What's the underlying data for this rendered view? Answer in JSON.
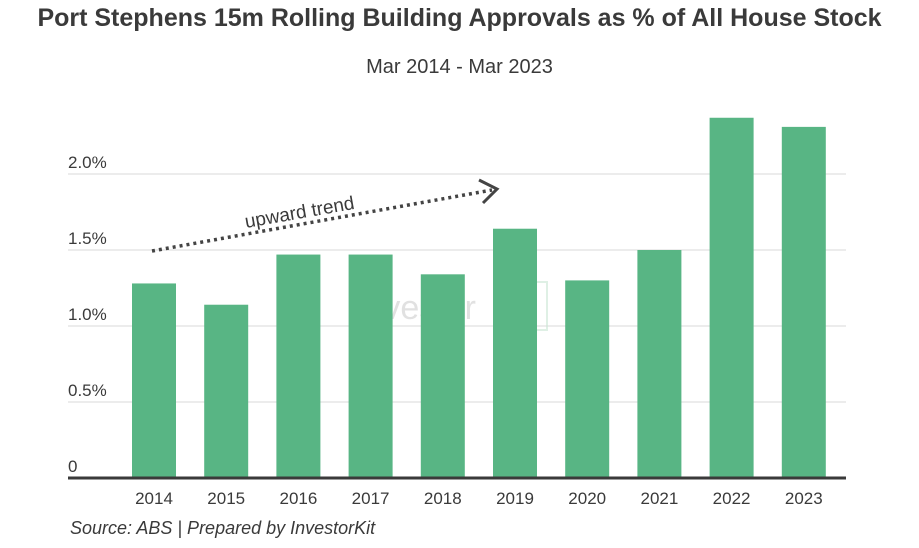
{
  "chart_data": {
    "type": "bar",
    "title": "Port Stephens 15m Rolling Building Approvals as % of All House Stock",
    "subtitle": "Mar 2014 - Mar 2023",
    "categories": [
      "2014",
      "2015",
      "2016",
      "2017",
      "2018",
      "2019",
      "2020",
      "2021",
      "2022",
      "2023"
    ],
    "values": [
      1.28,
      1.14,
      1.47,
      1.47,
      1.34,
      1.64,
      1.3,
      1.5,
      2.37,
      2.31
    ],
    "y_ticks": [
      {
        "value": 0,
        "label": "0"
      },
      {
        "value": 0.5,
        "label": "0.5%"
      },
      {
        "value": 1.0,
        "label": "1.0%"
      },
      {
        "value": 1.5,
        "label": "1.5%"
      },
      {
        "value": 2.0,
        "label": "2.0%"
      }
    ],
    "ylim": [
      0,
      2.5
    ],
    "grid": true,
    "bar_color": "#58b584",
    "annotation": "upward trend",
    "watermark": "Investor",
    "source": "Source: ABS | Prepared by InvestorKit"
  }
}
